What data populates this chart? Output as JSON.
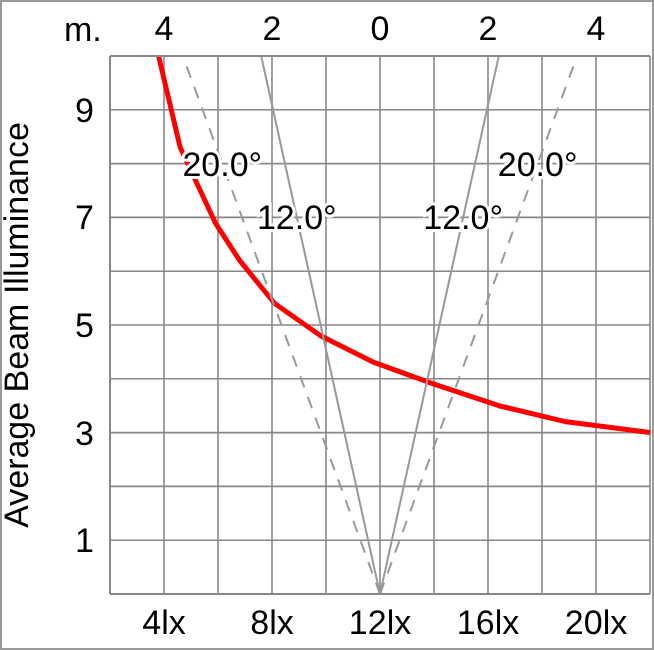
{
  "chart_data": {
    "type": "line",
    "ylabel": "Average Beam Illuminance",
    "x2label": "m.",
    "xlim": [
      2,
      22
    ],
    "xticks": [
      {
        "value": 4,
        "label": "4lx"
      },
      {
        "value": 6,
        "label": null
      },
      {
        "value": 8,
        "label": "8lx"
      },
      {
        "value": 10,
        "label": null
      },
      {
        "value": 12,
        "label": "12lx"
      },
      {
        "value": 14,
        "label": null
      },
      {
        "value": 16,
        "label": "16lx"
      },
      {
        "value": 18,
        "label": null
      },
      {
        "value": 20,
        "label": "20lx"
      }
    ],
    "x2lim": [
      -5,
      5
    ],
    "x2ticks": [
      {
        "value": -4,
        "label": "4"
      },
      {
        "value": -2,
        "label": "2"
      },
      0,
      {
        "value": 2,
        "label": "2"
      },
      {
        "value": 4,
        "label": "4"
      }
    ],
    "ylim": [
      0,
      10
    ],
    "yticks": [
      1,
      {
        "value": 2,
        "label": null
      },
      3,
      {
        "value": 4,
        "label": null
      },
      5,
      {
        "value": 6,
        "label": null
      },
      7,
      {
        "value": 8,
        "label": null
      },
      9
    ],
    "grid": true,
    "marker": "none",
    "series": [
      {
        "color": "#ff0000",
        "line_style": "solid",
        "x": [
          3.8,
          4.6,
          5.9,
          6.8,
          8.1,
          9.8,
          11.8,
          14,
          16.4,
          18.9,
          22
        ],
        "values": [
          10,
          8.3,
          6.9,
          6.2,
          5.4,
          4.8,
          4.3,
          3.9,
          3.5,
          3.2,
          3.0
        ]
      },
      {
        "name": "12.0°",
        "color": "#999999",
        "line_style": "solid",
        "axis": "x2",
        "x": [
          0,
          -2.2
        ],
        "values": [
          0,
          10
        ]
      },
      {
        "name": "12.0°",
        "color": "#999999",
        "line_style": "solid",
        "axis": "x2",
        "x": [
          0,
          2.2
        ],
        "values": [
          0,
          10
        ]
      },
      {
        "name": "20.0°",
        "color": "#999999",
        "line_style": "dashed",
        "axis": "x2",
        "x": [
          0,
          -3.65
        ],
        "values": [
          0,
          10
        ]
      },
      {
        "name": "20.0°",
        "color": "#999999",
        "line_style": "dashed",
        "axis": "x2",
        "x": [
          0,
          3.65
        ],
        "values": [
          0,
          10
        ]
      }
    ]
  }
}
